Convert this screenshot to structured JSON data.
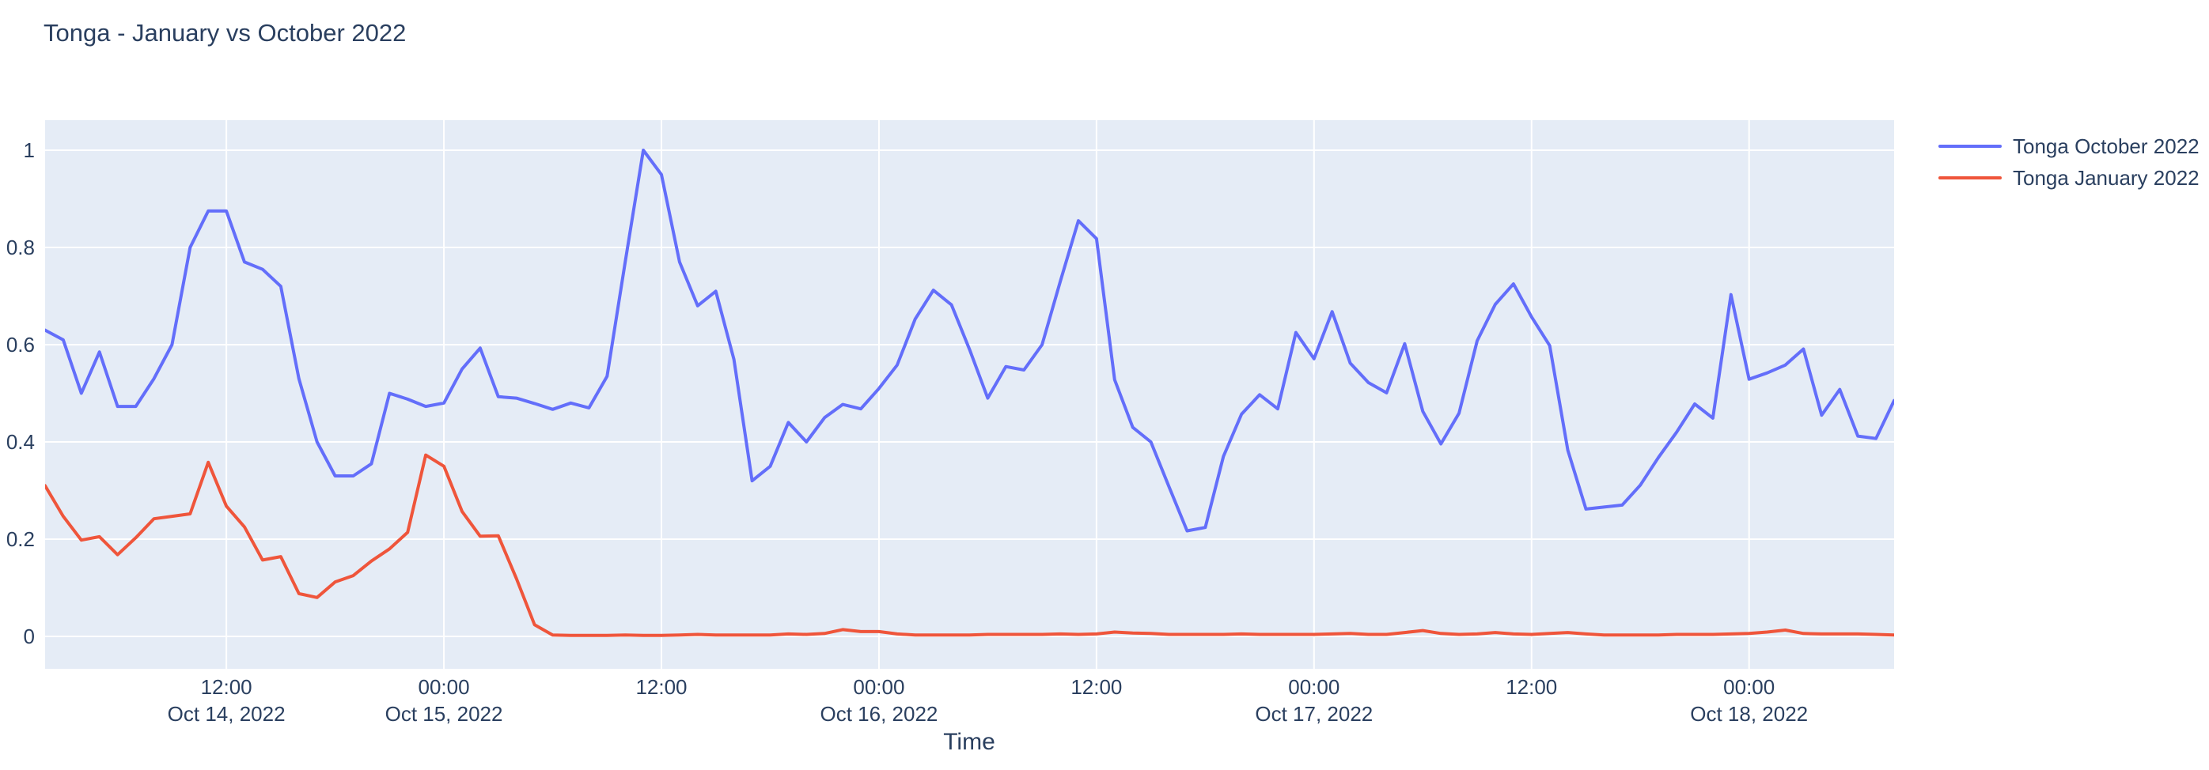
{
  "title": "Tonga - January vs October 2022",
  "colors": {
    "text": "#2a3f5f",
    "plot_background": "#E5ECF6",
    "grid": "#FFFFFF",
    "series_october": "#636EFA",
    "series_january": "#EF553B"
  },
  "legend": {
    "items": [
      {
        "label": "Tonga October 2022",
        "color": "#636EFA"
      },
      {
        "label": "Tonga January 2022",
        "color": "#EF553B"
      }
    ]
  },
  "chart_data": {
    "type": "line",
    "title": "Tonga - January vs October 2022",
    "xlabel": "Time",
    "ylabel": "",
    "grid": true,
    "legend_position": "top-right-outside",
    "plot_bg": "#E5ECF6",
    "grid_color": "#FFFFFF",
    "x_start": "2022-10-14 02:00",
    "x_end": "2022-10-18 08:00",
    "x_interval_hours": 1,
    "start_hour_offset": 2,
    "ylim": [
      0,
      1
    ],
    "yticks": [
      {
        "value": 0,
        "label": "0"
      },
      {
        "value": 0.2,
        "label": "0.2"
      },
      {
        "value": 0.4,
        "label": "0.4"
      },
      {
        "value": 0.6,
        "label": "0.6"
      },
      {
        "value": 0.8,
        "label": "0.8"
      },
      {
        "value": 1,
        "label": "1"
      }
    ],
    "xticks": [
      {
        "hour": 12,
        "time": "12:00",
        "date": "Oct 14, 2022"
      },
      {
        "hour": 24,
        "time": "00:00",
        "date": "Oct 15, 2022"
      },
      {
        "hour": 36,
        "time": "12:00",
        "date": ""
      },
      {
        "hour": 48,
        "time": "00:00",
        "date": "Oct 16, 2022"
      },
      {
        "hour": 60,
        "time": "12:00",
        "date": ""
      },
      {
        "hour": 72,
        "time": "00:00",
        "date": "Oct 17, 2022"
      },
      {
        "hour": 84,
        "time": "12:00",
        "date": ""
      },
      {
        "hour": 96,
        "time": "00:00",
        "date": "Oct 18, 2022"
      }
    ],
    "series": [
      {
        "name": "Tonga October 2022",
        "color": "#636EFA",
        "values": [
          0.63,
          0.61,
          0.5,
          0.585,
          0.473,
          0.473,
          0.53,
          0.6,
          0.8,
          0.875,
          0.875,
          0.77,
          0.755,
          0.72,
          0.53,
          0.4,
          0.33,
          0.33,
          0.355,
          0.5,
          0.488,
          0.473,
          0.48,
          0.55,
          0.593,
          0.493,
          0.49,
          0.479,
          0.467,
          0.48,
          0.47,
          0.535,
          0.77,
          1.0,
          0.95,
          0.77,
          0.68,
          0.71,
          0.57,
          0.32,
          0.35,
          0.44,
          0.4,
          0.45,
          0.477,
          0.468,
          0.51,
          0.558,
          0.653,
          0.712,
          0.682,
          0.59,
          0.49,
          0.555,
          0.548,
          0.6,
          0.73,
          0.855,
          0.818,
          0.528,
          0.43,
          0.4,
          0.308,
          0.217,
          0.224,
          0.37,
          0.457,
          0.497,
          0.468,
          0.625,
          0.571,
          0.668,
          0.562,
          0.522,
          0.501,
          0.602,
          0.463,
          0.396,
          0.459,
          0.608,
          0.683,
          0.725,
          0.657,
          0.598,
          0.383,
          0.262,
          0.266,
          0.27,
          0.311,
          0.368,
          0.42,
          0.478,
          0.449,
          0.703,
          0.529,
          0.542,
          0.558,
          0.591,
          0.455,
          0.508,
          0.412,
          0.407,
          0.485
        ]
      },
      {
        "name": "Tonga January 2022",
        "color": "#EF553B",
        "values": [
          0.31,
          0.247,
          0.198,
          0.205,
          0.168,
          0.203,
          0.242,
          0.247,
          0.252,
          0.358,
          0.268,
          0.225,
          0.157,
          0.164,
          0.088,
          0.08,
          0.112,
          0.125,
          0.155,
          0.18,
          0.214,
          0.373,
          0.35,
          0.257,
          0.206,
          0.207,
          0.119,
          0.024,
          0.003,
          0.002,
          0.002,
          0.002,
          0.003,
          0.002,
          0.002,
          0.003,
          0.004,
          0.003,
          0.003,
          0.003,
          0.003,
          0.005,
          0.004,
          0.006,
          0.014,
          0.01,
          0.01,
          0.005,
          0.003,
          0.003,
          0.003,
          0.003,
          0.004,
          0.004,
          0.004,
          0.004,
          0.005,
          0.004,
          0.005,
          0.009,
          0.007,
          0.006,
          0.004,
          0.004,
          0.004,
          0.004,
          0.005,
          0.004,
          0.004,
          0.004,
          0.004,
          0.005,
          0.006,
          0.004,
          0.004,
          0.008,
          0.012,
          0.006,
          0.004,
          0.005,
          0.008,
          0.005,
          0.004,
          0.006,
          0.008,
          0.005,
          0.003,
          0.003,
          0.003,
          0.003,
          0.004,
          0.004,
          0.004,
          0.005,
          0.006,
          0.009,
          0.013,
          0.006,
          0.005,
          0.005,
          0.005,
          0.004,
          0.003
        ]
      }
    ]
  }
}
